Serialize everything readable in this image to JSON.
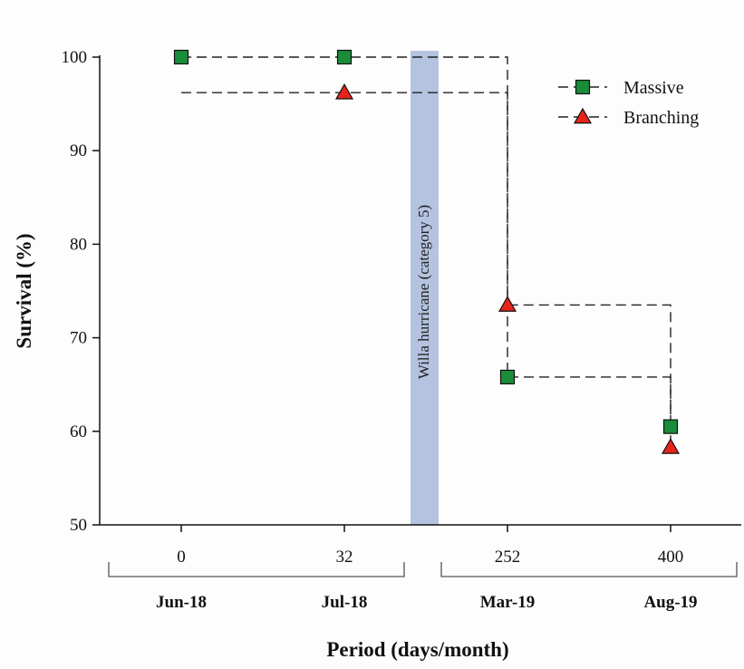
{
  "chart_data": {
    "type": "line",
    "step": true,
    "ylabel": "Survival (%)",
    "xlabel": "Period (days/month)",
    "ylim": [
      50,
      100
    ],
    "yticks": [
      50,
      60,
      70,
      80,
      90,
      100
    ],
    "x": [
      0,
      32,
      252,
      400
    ],
    "x_labels": [
      "0",
      "32",
      "252",
      "400"
    ],
    "x_dates": [
      "Jun-18",
      "Jul-18",
      "Mar-19",
      "Aug-19"
    ],
    "series": [
      {
        "name": "Massive",
        "marker": "square",
        "color": "#1a8c3a",
        "values": [
          100,
          100,
          65.8,
          60.5
        ]
      },
      {
        "name": "Branching",
        "marker": "triangle",
        "color": "#e8231c",
        "values": [
          96.2,
          96.2,
          73.5,
          58.3
        ]
      }
    ],
    "annotation": {
      "text": "Willa hurricane (category 5)",
      "between": [
        32,
        252
      ],
      "color": "#b4c3e0"
    },
    "legend_position": "top-right",
    "grid": false,
    "line_style": "dashed"
  }
}
